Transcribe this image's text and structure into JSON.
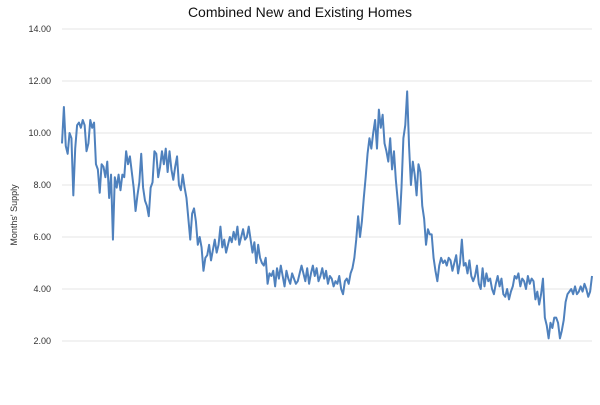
{
  "chart_data": {
    "type": "line",
    "title": "Combined New and Existing Homes",
    "xlabel": "",
    "ylabel": "Months' Supply",
    "ylim": [
      0,
      14
    ],
    "yticks": [
      "",
      "2.00",
      "4.00",
      "6.00",
      "8.00",
      "10.00",
      "12.00",
      "14.00"
    ],
    "grid": true,
    "legend": "none",
    "colors": {
      "series": "#4f81bd",
      "grid": "#e6e6e6"
    },
    "series": [
      {
        "values": [
          9.6,
          11.0,
          9.5,
          9.2,
          10.0,
          9.8,
          7.6,
          9.4,
          10.3,
          10.4,
          10.2,
          10.5,
          10.3,
          9.3,
          9.6,
          10.5,
          10.2,
          10.4,
          8.8,
          8.6,
          7.7,
          8.8,
          8.7,
          8.3,
          8.9,
          7.5,
          8.4,
          5.9,
          8.3,
          7.9,
          8.4,
          7.8,
          8.4,
          8.3,
          9.3,
          8.8,
          9.1,
          8.5,
          7.9,
          7.0,
          7.6,
          8.1,
          9.2,
          7.9,
          7.4,
          7.2,
          6.8,
          7.9,
          8.1,
          9.3,
          9.2,
          8.3,
          8.7,
          9.3,
          8.8,
          9.4,
          8.5,
          9.3,
          8.6,
          8.2,
          8.7,
          9.1,
          8.0,
          7.8,
          8.4,
          7.9,
          7.5,
          6.7,
          5.9,
          6.9,
          7.1,
          6.6,
          5.7,
          6.0,
          5.6,
          4.7,
          5.2,
          5.3,
          5.7,
          5.1,
          5.5,
          5.9,
          5.4,
          5.7,
          6.4,
          5.6,
          5.9,
          5.4,
          5.7,
          6.0,
          5.8,
          6.2,
          5.9,
          6.4,
          5.7,
          6.0,
          6.3,
          5.9,
          6.0,
          6.4,
          5.9,
          5.4,
          5.8,
          5.0,
          5.7,
          5.2,
          5.0,
          4.9,
          5.2,
          4.2,
          4.6,
          4.5,
          4.7,
          4.1,
          4.8,
          4.4,
          4.9,
          4.5,
          4.1,
          4.7,
          4.4,
          4.2,
          4.6,
          4.4,
          4.2,
          4.3,
          4.6,
          4.9,
          4.6,
          4.3,
          4.8,
          4.2,
          4.6,
          4.9,
          4.5,
          4.8,
          4.3,
          4.5,
          4.8,
          4.4,
          4.7,
          4.2,
          4.5,
          4.4,
          4.1,
          4.3,
          4.2,
          4.5,
          4.0,
          3.8,
          4.3,
          4.4,
          4.2,
          4.6,
          4.8,
          5.2,
          5.9,
          6.8,
          6.0,
          6.6,
          7.5,
          8.3,
          9.2,
          9.8,
          9.4,
          10.0,
          10.5,
          9.4,
          10.9,
          10.2,
          10.7,
          9.6,
          9.3,
          8.9,
          9.8,
          8.6,
          9.3,
          8.2,
          7.4,
          6.5,
          7.9,
          9.8,
          10.3,
          11.6,
          9.5,
          8.0,
          8.9,
          8.4,
          7.6,
          8.8,
          8.5,
          7.2,
          6.7,
          5.7,
          6.3,
          6.1,
          6.1,
          5.2,
          4.7,
          4.3,
          4.9,
          5.2,
          5.0,
          5.1,
          4.9,
          5.2,
          5.1,
          4.7,
          5.0,
          5.3,
          4.6,
          5.0,
          5.9,
          4.9,
          5.0,
          4.6,
          5.1,
          4.5,
          4.3,
          4.5,
          4.9,
          4.2,
          4.0,
          4.8,
          4.1,
          4.6,
          4.3,
          4.4,
          4.0,
          3.8,
          4.2,
          4.5,
          4.1,
          4.4,
          3.8,
          3.7,
          4.0,
          3.6,
          3.9,
          4.1,
          4.5,
          4.4,
          4.6,
          4.1,
          4.4,
          4.3,
          4.0,
          4.5,
          4.2,
          4.4,
          4.3,
          3.6,
          3.9,
          3.4,
          3.8,
          4.4,
          2.9,
          2.6,
          2.1,
          2.7,
          2.5,
          2.9,
          2.9,
          2.7,
          2.1,
          2.4,
          2.8,
          3.5,
          3.8,
          3.9,
          4.0,
          3.8,
          4.1,
          3.8,
          3.9,
          4.1,
          3.9,
          4.2,
          4.0,
          3.7,
          3.9,
          4.5
        ]
      }
    ]
  }
}
